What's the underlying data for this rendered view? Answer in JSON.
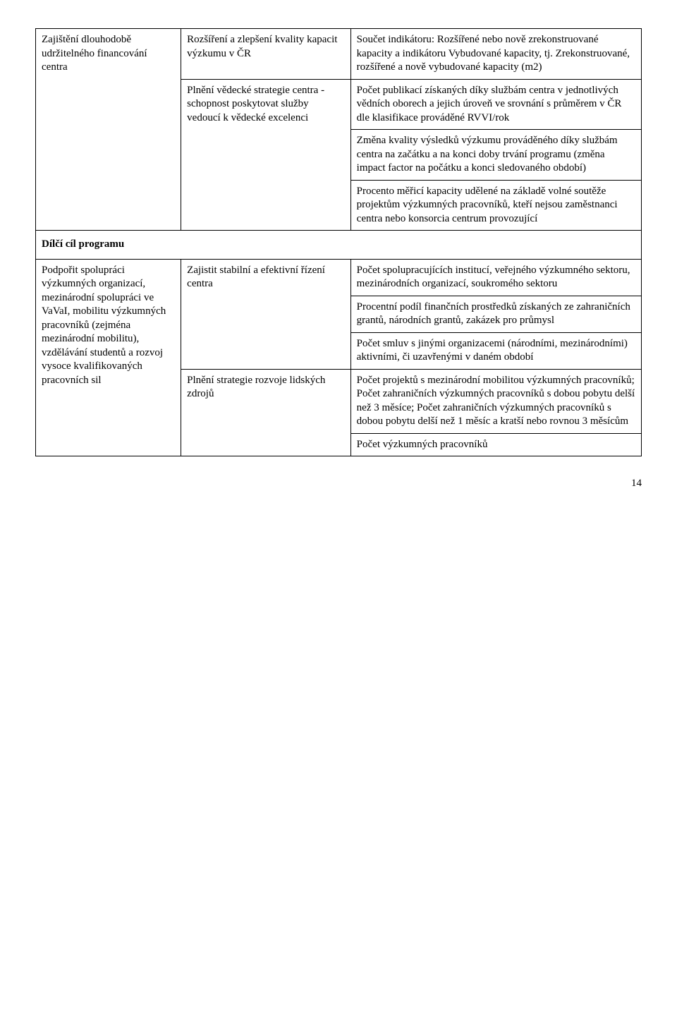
{
  "rows": {
    "r1c1": "Zajištění dlouhodobě udržitelného financování centra",
    "r1c2": "Rozšíření a zlepšení kvality kapacit výzkumu v ČR",
    "r1c3": "Součet indikátoru: Rozšířené nebo nově zrekonstruované kapacity a indikátoru Vybudované kapacity, tj. Zrekonstruované, rozšířené a nově vybudované kapacity (m2)",
    "r2c2": "Plnění vědecké strategie centra - schopnost poskytovat služby vedoucí k vědecké excelenci",
    "r2c3": "Počet publikací získaných díky službám centra v jednotlivých vědních oborech a jejich úroveň ve srovnání s průměrem v ČR dle klasifikace prováděné RVVI/rok",
    "r3c3": "Změna kvality výsledků výzkumu prováděného díky službám centra na začátku a na konci doby trvání programu (změna impact factor na počátku a konci sledovaného období)",
    "r4c3": "Procento měřicí kapacity udělené na základě volné soutěže projektům výzkumných pracovníků, kteří nejsou zaměstnanci centra nebo konsorcia centrum provozující",
    "sectionHeading": "Dílčí cíl programu",
    "r5c1": "Podpořit spolupráci výzkumných organizací, mezinárodní spolupráci ve VaVaI, mobilitu výzkumných pracovníků (zejména mezinárodní mobilitu), vzdělávání studentů a rozvoj vysoce kvalifikovaných pracovních sil",
    "r5c2": "Zajistit stabilní a efektivní řízení centra",
    "r5c3": "Počet spolupracujících institucí, veřejného výzkumného sektoru, mezinárodních organizací, soukromého sektoru",
    "r6c3": "Procentní podíl finančních prostředků získaných ze zahraničních grantů, národních grantů, zakázek pro průmysl",
    "r7c3": "Počet smluv s jinými organizacemi (národními, mezinárodními) aktivními, či uzavřenými v daném období",
    "r8c2": "Plnění strategie rozvoje lidských zdrojů",
    "r8c3": "Počet projektů s mezinárodní mobilitou výzkumných pracovníků; Počet zahraničních výzkumných pracovníků s dobou pobytu delší než 3 měsíce; Počet zahraničních výzkumných pracovníků s dobou pobytu delší než 1 měsíc a kratší nebo rovnou 3 měsícům",
    "r9c3": "Počet výzkumných pracovníků"
  },
  "pageNumber": "14"
}
